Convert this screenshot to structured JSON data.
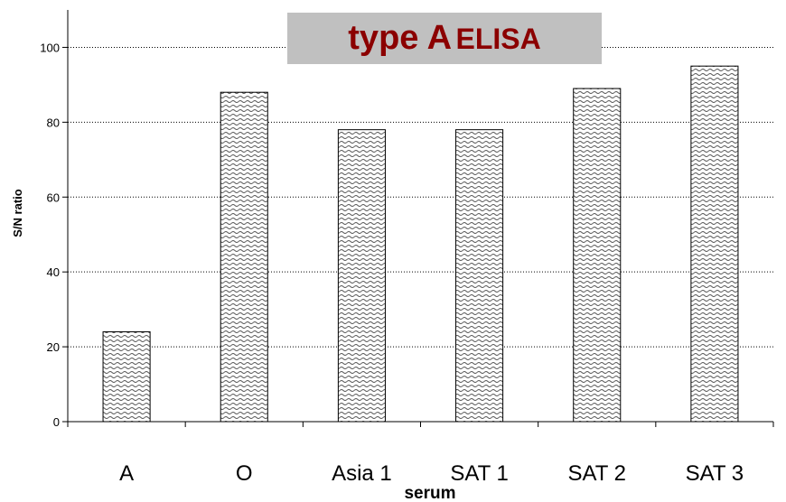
{
  "chart_data": {
    "type": "bar",
    "title_main": "type A",
    "title_suffix": "ELISA",
    "xlabel": "serum",
    "ylabel": "S/N ratio",
    "categories": [
      "A",
      "O",
      "Asia 1",
      "SAT 1",
      "SAT 2",
      "SAT 3"
    ],
    "values": [
      24,
      88,
      78,
      78,
      89,
      95
    ],
    "ylim": [
      0,
      110
    ],
    "yticks": [
      0,
      20,
      40,
      60,
      80,
      100
    ],
    "grid": "horizontal",
    "bar_fill": "wavy-hatch",
    "colors": {
      "title": "#8b0000",
      "title_background": "#c0c0c0",
      "grid": "#000000"
    }
  }
}
